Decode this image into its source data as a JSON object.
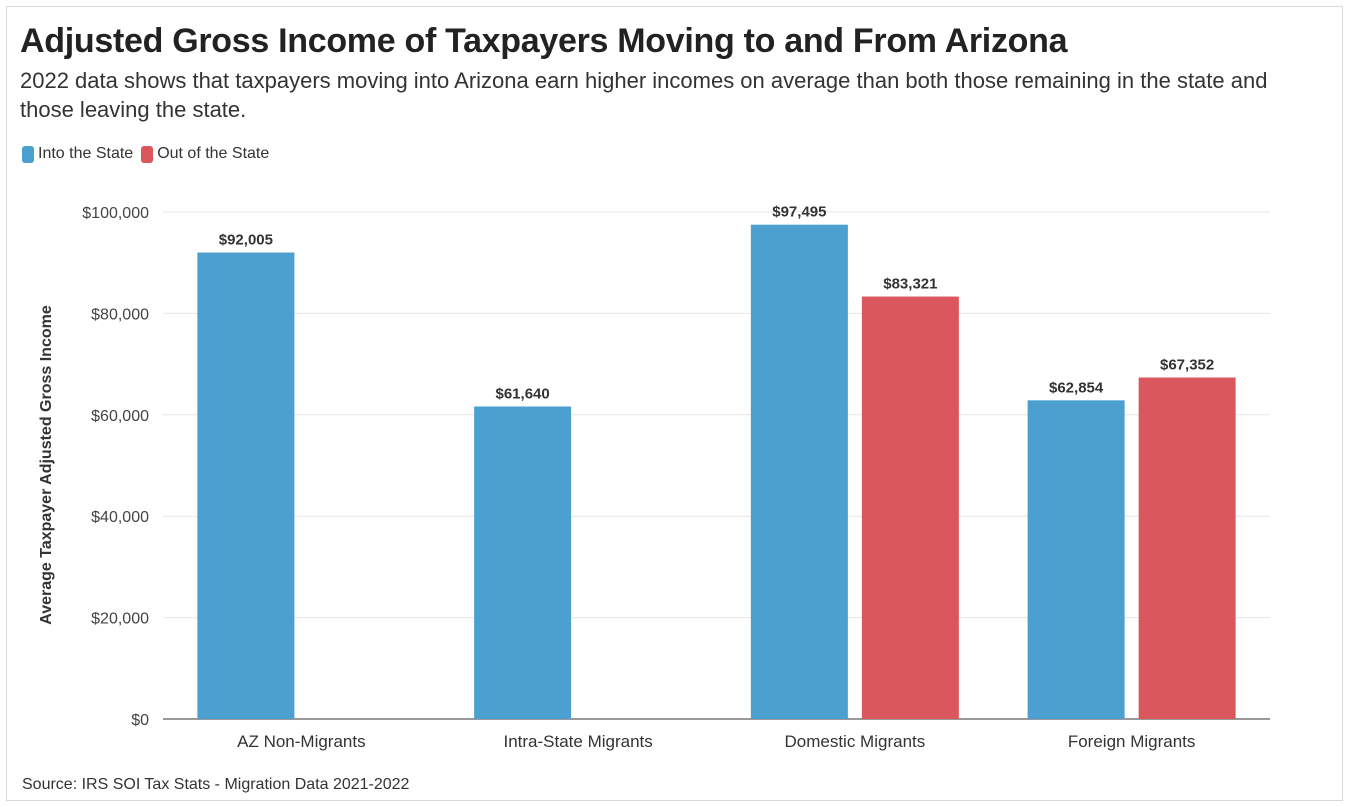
{
  "title": "Adjusted Gross Income of Taxpayers Moving to and From Arizona",
  "subtitle": "2022 data shows that taxpayers moving into Arizona earn higher incomes on average than both those remaining in the state and those leaving the state.",
  "source": "Source: IRS SOI Tax Stats - Migration Data 2021-2022",
  "colors": {
    "into": "#4ba0d0",
    "out": "#d9575d",
    "grid": "#e6e6e6",
    "axis": "#333333"
  },
  "chart_data": {
    "type": "bar",
    "title": "Adjusted Gross Income of Taxpayers Moving to and From Arizona",
    "subtitle": "2022 data shows that taxpayers moving into Arizona earn higher incomes on average than both those remaining in the state and those leaving the state.",
    "xlabel": "",
    "ylabel": "Average Taxpayer Adjusted Gross Income",
    "ylim": [
      0,
      100000
    ],
    "yticks": [
      0,
      20000,
      40000,
      60000,
      80000,
      100000
    ],
    "ytick_labels": [
      "$0",
      "$20,000",
      "$40,000",
      "$60,000",
      "$80,000",
      "$100,000"
    ],
    "grid": true,
    "legend_position": "top-left",
    "categories": [
      "AZ Non-Migrants",
      "Intra-State Migrants",
      "Domestic Migrants",
      "Foreign Migrants"
    ],
    "series": [
      {
        "name": "Into the State",
        "color": "#4ba0d0",
        "values": [
          92005,
          61640,
          97495,
          62854
        ],
        "labels": [
          "$92,005",
          "$61,640",
          "$97,495",
          "$62,854"
        ]
      },
      {
        "name": "Out of the State",
        "color": "#d9575d",
        "values": [
          null,
          null,
          83321,
          67352
        ],
        "labels": [
          "",
          "",
          "$83,321",
          "$67,352"
        ]
      }
    ]
  }
}
